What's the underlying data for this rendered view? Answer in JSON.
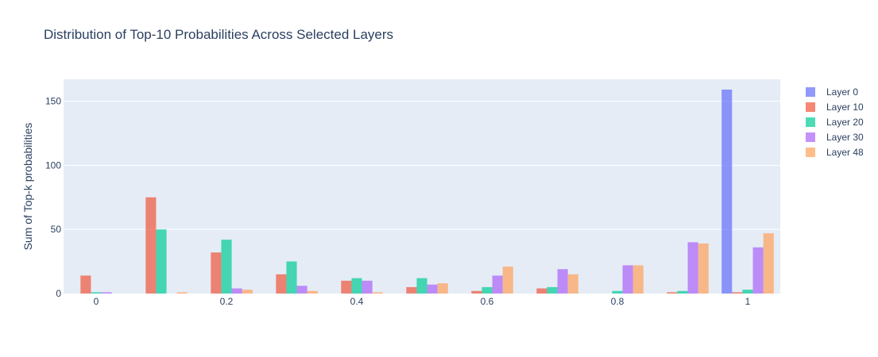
{
  "chart_data": {
    "type": "bar",
    "title": "Distribution of Top-10 Probabilities Across Selected Layers",
    "xlabel": "",
    "ylabel": "Sum of Top-k probabilities",
    "xlim": [
      -0.05,
      1.05
    ],
    "ylim": [
      0,
      167
    ],
    "x_ticks": [
      0,
      0.2,
      0.4,
      0.6,
      0.8,
      1
    ],
    "x_tick_labels": [
      "0",
      "0.2",
      "0.4",
      "0.6",
      "0.8",
      "1"
    ],
    "y_ticks": [
      0,
      50,
      100,
      150
    ],
    "y_tick_labels": [
      "0",
      "50",
      "100",
      "150"
    ],
    "grid": true,
    "legend_position": "right",
    "bin_centers": [
      0,
      0.1,
      0.2,
      0.3,
      0.4,
      0.5,
      0.6,
      0.7,
      0.8,
      0.9,
      1.0
    ],
    "series": [
      {
        "name": "Layer 0",
        "color": "#636efa",
        "values": [
          0,
          0,
          0,
          0,
          0,
          0,
          0,
          0,
          0,
          0,
          159
        ]
      },
      {
        "name": "Layer 10",
        "color": "#EF553B",
        "values": [
          14,
          75,
          32,
          15,
          10,
          5,
          2,
          4,
          0,
          1,
          1
        ]
      },
      {
        "name": "Layer 20",
        "color": "#00cc96",
        "values": [
          1,
          50,
          42,
          25,
          12,
          12,
          5,
          5,
          2,
          2,
          3
        ]
      },
      {
        "name": "Layer 30",
        "color": "#ab63fa",
        "values": [
          1,
          0,
          4,
          6,
          10,
          7,
          14,
          19,
          22,
          40,
          36
        ]
      },
      {
        "name": "Layer 48",
        "color": "#FFA15A",
        "values": [
          0,
          1,
          3,
          2,
          1,
          8,
          21,
          15,
          22,
          39,
          47
        ]
      }
    ],
    "bar_opacity": 0.7
  }
}
